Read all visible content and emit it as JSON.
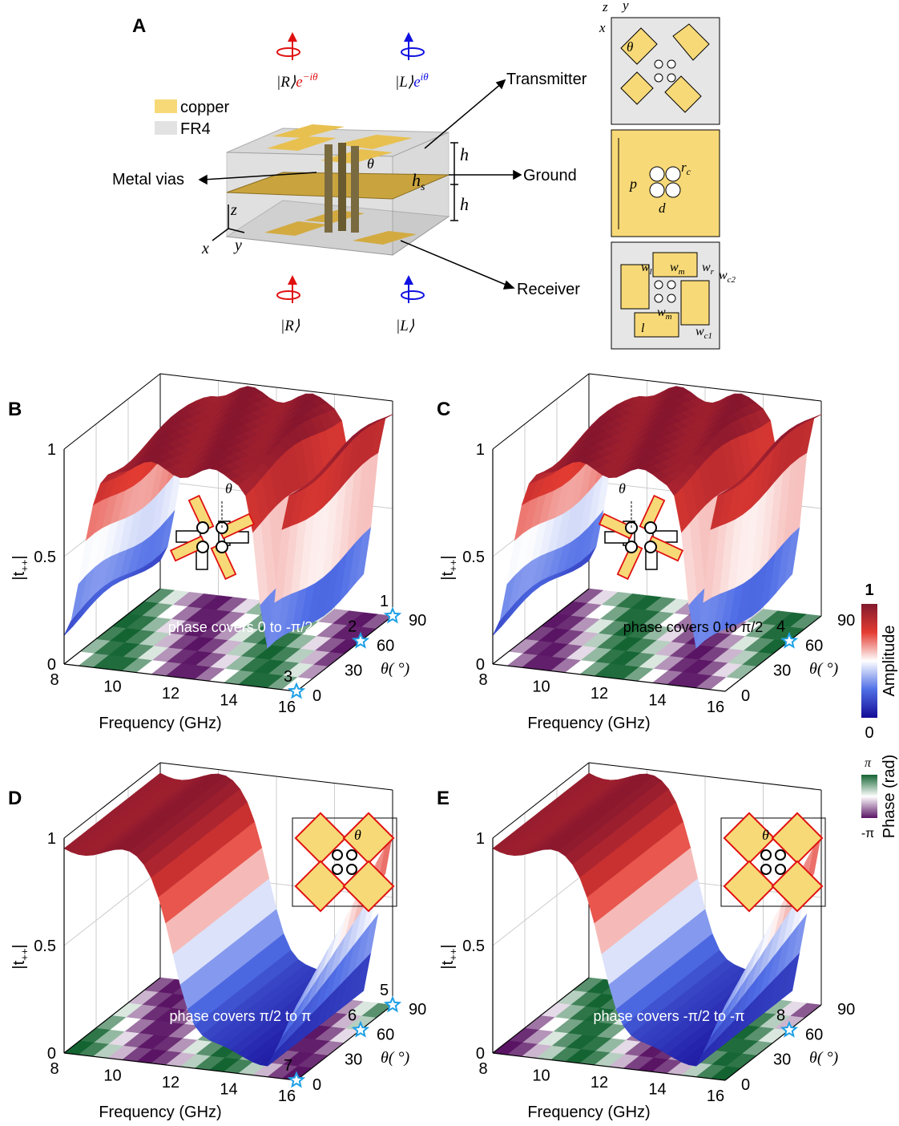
{
  "panel_a": {
    "label": "A",
    "legend": [
      "copper",
      "FR4"
    ],
    "top_states": [
      {
        "ket": "|R⟩",
        "e": "e",
        "sup": "−iθ"
      },
      {
        "ket": "|L⟩",
        "e": "e",
        "sup": "iθ"
      }
    ],
    "bottom_states": [
      "|R⟩",
      "|L⟩"
    ],
    "callouts": {
      "transmitter": "Transmitter",
      "ground": "Ground",
      "receiver": "Receiver",
      "vias": "Metal vias"
    },
    "dims": {
      "h_top": "h",
      "h_bottom": "h",
      "hs": "h",
      "hs_sub": "s",
      "theta": "θ"
    },
    "axes": {
      "z": "z",
      "x": "x",
      "y": "y"
    },
    "inset_top": {
      "z": "z",
      "y": "y",
      "x": "x",
      "theta": "θ"
    },
    "inset_mid": {
      "p": "p",
      "r": "r",
      "r_sub": "c",
      "d": "d"
    },
    "inset_bottom": [
      {
        "t": "w",
        "s": "l"
      },
      {
        "t": "w",
        "s": "m"
      },
      {
        "t": "w",
        "s": "r"
      },
      {
        "t": "w",
        "s": "c2"
      },
      {
        "t": "w",
        "s": "m"
      },
      {
        "t": "w",
        "s": "c1"
      },
      {
        "t": "l"
      }
    ]
  },
  "axes": {
    "y_label": {
      "main": "|t",
      "sub": "++",
      "end": "|"
    },
    "y_ticks": [
      "0",
      "0.5",
      "1"
    ],
    "x_label": "Frequency (GHz)",
    "x_ticks": [
      "8",
      "10",
      "12",
      "14",
      "16"
    ],
    "theta_label": "θ( °)",
    "theta_ticks": [
      "0",
      "30",
      "60",
      "90"
    ]
  },
  "panels": [
    {
      "label": "B",
      "annotation": "phase covers 0 to -π/2",
      "annotation_color": "#ffffff",
      "inset_theta": "θ",
      "stars": [
        {
          "label": "1",
          "theta": 90
        },
        {
          "label": "2",
          "theta": 60
        },
        {
          "label": "3",
          "theta": 0
        }
      ]
    },
    {
      "label": "C",
      "annotation": "phase covers 0 to π/2",
      "annotation_color": "#000000",
      "inset_theta": "θ",
      "stars": [
        {
          "label": "4",
          "theta": 60
        }
      ]
    },
    {
      "label": "D",
      "annotation": "phase covers π/2 to π",
      "annotation_color": "#ffffff",
      "inset_theta": "θ",
      "stars": [
        {
          "label": "5",
          "theta": 90
        },
        {
          "label": "6",
          "theta": 60
        },
        {
          "label": "7",
          "theta": 0
        }
      ]
    },
    {
      "label": "E",
      "annotation": "phase covers -π/2 to -π",
      "annotation_color": "#ffffff",
      "inset_theta": "θ",
      "stars": [
        {
          "label": "8",
          "theta": 60
        }
      ]
    }
  ],
  "colorbars": {
    "amp_max": "1",
    "amp_min": "0",
    "amp_label": "Amplitude",
    "phase_max": "π",
    "phase_min": "-π",
    "phase_label": "Phase (rad)"
  }
}
